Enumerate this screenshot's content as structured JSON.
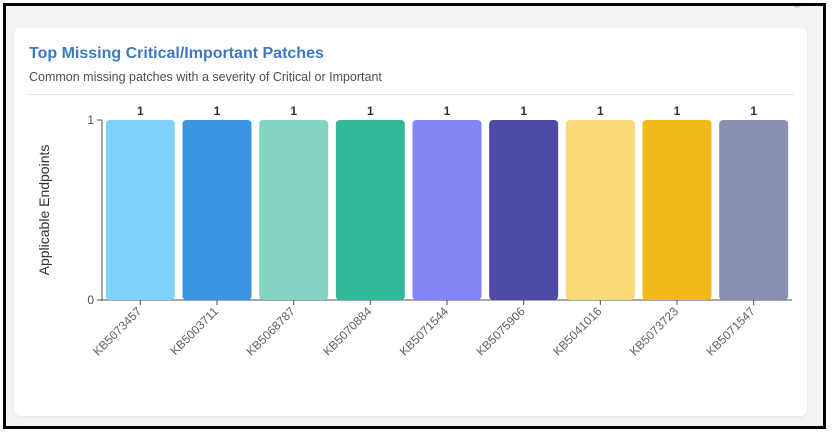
{
  "card": {
    "title": "Top Missing Critical/Important Patches",
    "subtitle": "Common missing patches with a severity of Critical or Important"
  },
  "chart_data": {
    "type": "bar",
    "title": "Top Missing Critical/Important Patches",
    "subtitle": "Common missing patches with a severity of Critical or Important",
    "xlabel": "",
    "ylabel": "Applicable Endpoints",
    "ylim": [
      0,
      1
    ],
    "yticks": [
      0,
      1
    ],
    "grid": false,
    "categories": [
      "KB5073457",
      "KB5003711",
      "KB5068787",
      "KB5070884",
      "KB5071544",
      "KB5075906",
      "KB5041016",
      "KB5073723",
      "KB5071547"
    ],
    "values": [
      1,
      1,
      1,
      1,
      1,
      1,
      1,
      1,
      1
    ],
    "data_labels": [
      "1",
      "1",
      "1",
      "1",
      "1",
      "1",
      "1",
      "1",
      "1"
    ],
    "colors": [
      "#7dd3fc",
      "#3b94e0",
      "#84d4c4",
      "#33b99a",
      "#8585f8",
      "#4d4aa8",
      "#fbd977",
      "#f0bb1a",
      "#8a91b0"
    ]
  }
}
